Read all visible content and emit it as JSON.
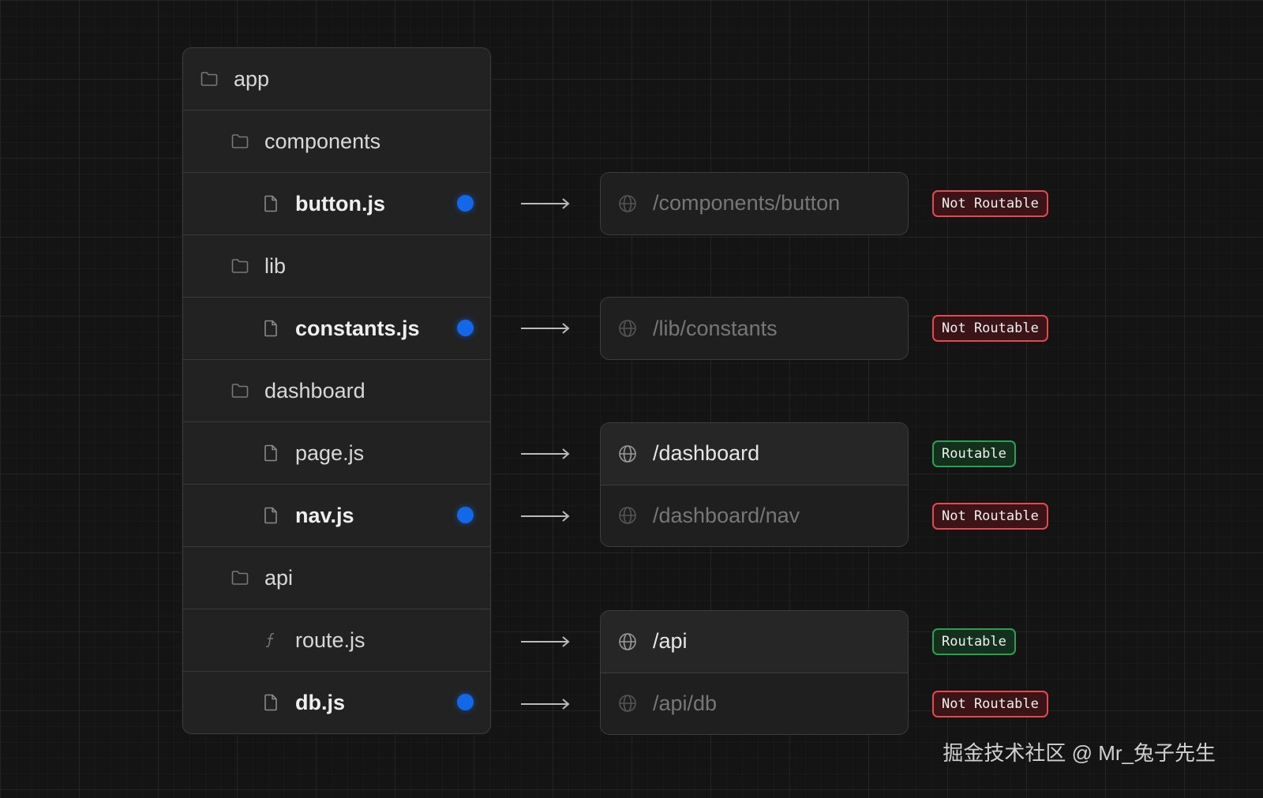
{
  "colors": {
    "dot": "#1268e8",
    "not_routable": "#e5484d",
    "routable": "#2f9e53"
  },
  "tree": [
    {
      "label": "app",
      "icon": "folder-icon",
      "depth": 0,
      "bold": false,
      "dot": false
    },
    {
      "label": "components",
      "icon": "folder-icon",
      "depth": 1,
      "bold": false,
      "dot": false
    },
    {
      "label": "button.js",
      "icon": "file-icon",
      "depth": 2,
      "bold": true,
      "dot": true
    },
    {
      "label": "lib",
      "icon": "folder-icon",
      "depth": 1,
      "bold": false,
      "dot": false
    },
    {
      "label": "constants.js",
      "icon": "file-icon",
      "depth": 2,
      "bold": true,
      "dot": true
    },
    {
      "label": "dashboard",
      "icon": "folder-icon",
      "depth": 1,
      "bold": false,
      "dot": false
    },
    {
      "label": "page.js",
      "icon": "file-icon",
      "depth": 2,
      "bold": false,
      "dot": false
    },
    {
      "label": "nav.js",
      "icon": "file-icon",
      "depth": 2,
      "bold": true,
      "dot": true
    },
    {
      "label": "api",
      "icon": "folder-icon",
      "depth": 1,
      "bold": false,
      "dot": false
    },
    {
      "label": "route.js",
      "icon": "function-icon",
      "depth": 2,
      "bold": false,
      "dot": false
    },
    {
      "label": "db.js",
      "icon": "file-icon",
      "depth": 2,
      "bold": true,
      "dot": true
    }
  ],
  "route_groups": [
    {
      "start_row": 2,
      "routes": [
        {
          "path": "/components/button",
          "active": false,
          "badge": "Not Routable",
          "routable": false
        }
      ]
    },
    {
      "start_row": 4,
      "routes": [
        {
          "path": "/lib/constants",
          "active": false,
          "badge": "Not Routable",
          "routable": false
        }
      ]
    },
    {
      "start_row": 6,
      "routes": [
        {
          "path": "/dashboard",
          "active": true,
          "badge": "Routable",
          "routable": true
        },
        {
          "path": "/dashboard/nav",
          "active": false,
          "badge": "Not Routable",
          "routable": false
        }
      ]
    },
    {
      "start_row": 9,
      "routes": [
        {
          "path": "/api",
          "active": true,
          "badge": "Routable",
          "routable": true
        },
        {
          "path": "/api/db",
          "active": false,
          "badge": "Not Routable",
          "routable": false
        }
      ]
    }
  ],
  "watermark": "掘金技术社区 @ Mr_兔子先生"
}
